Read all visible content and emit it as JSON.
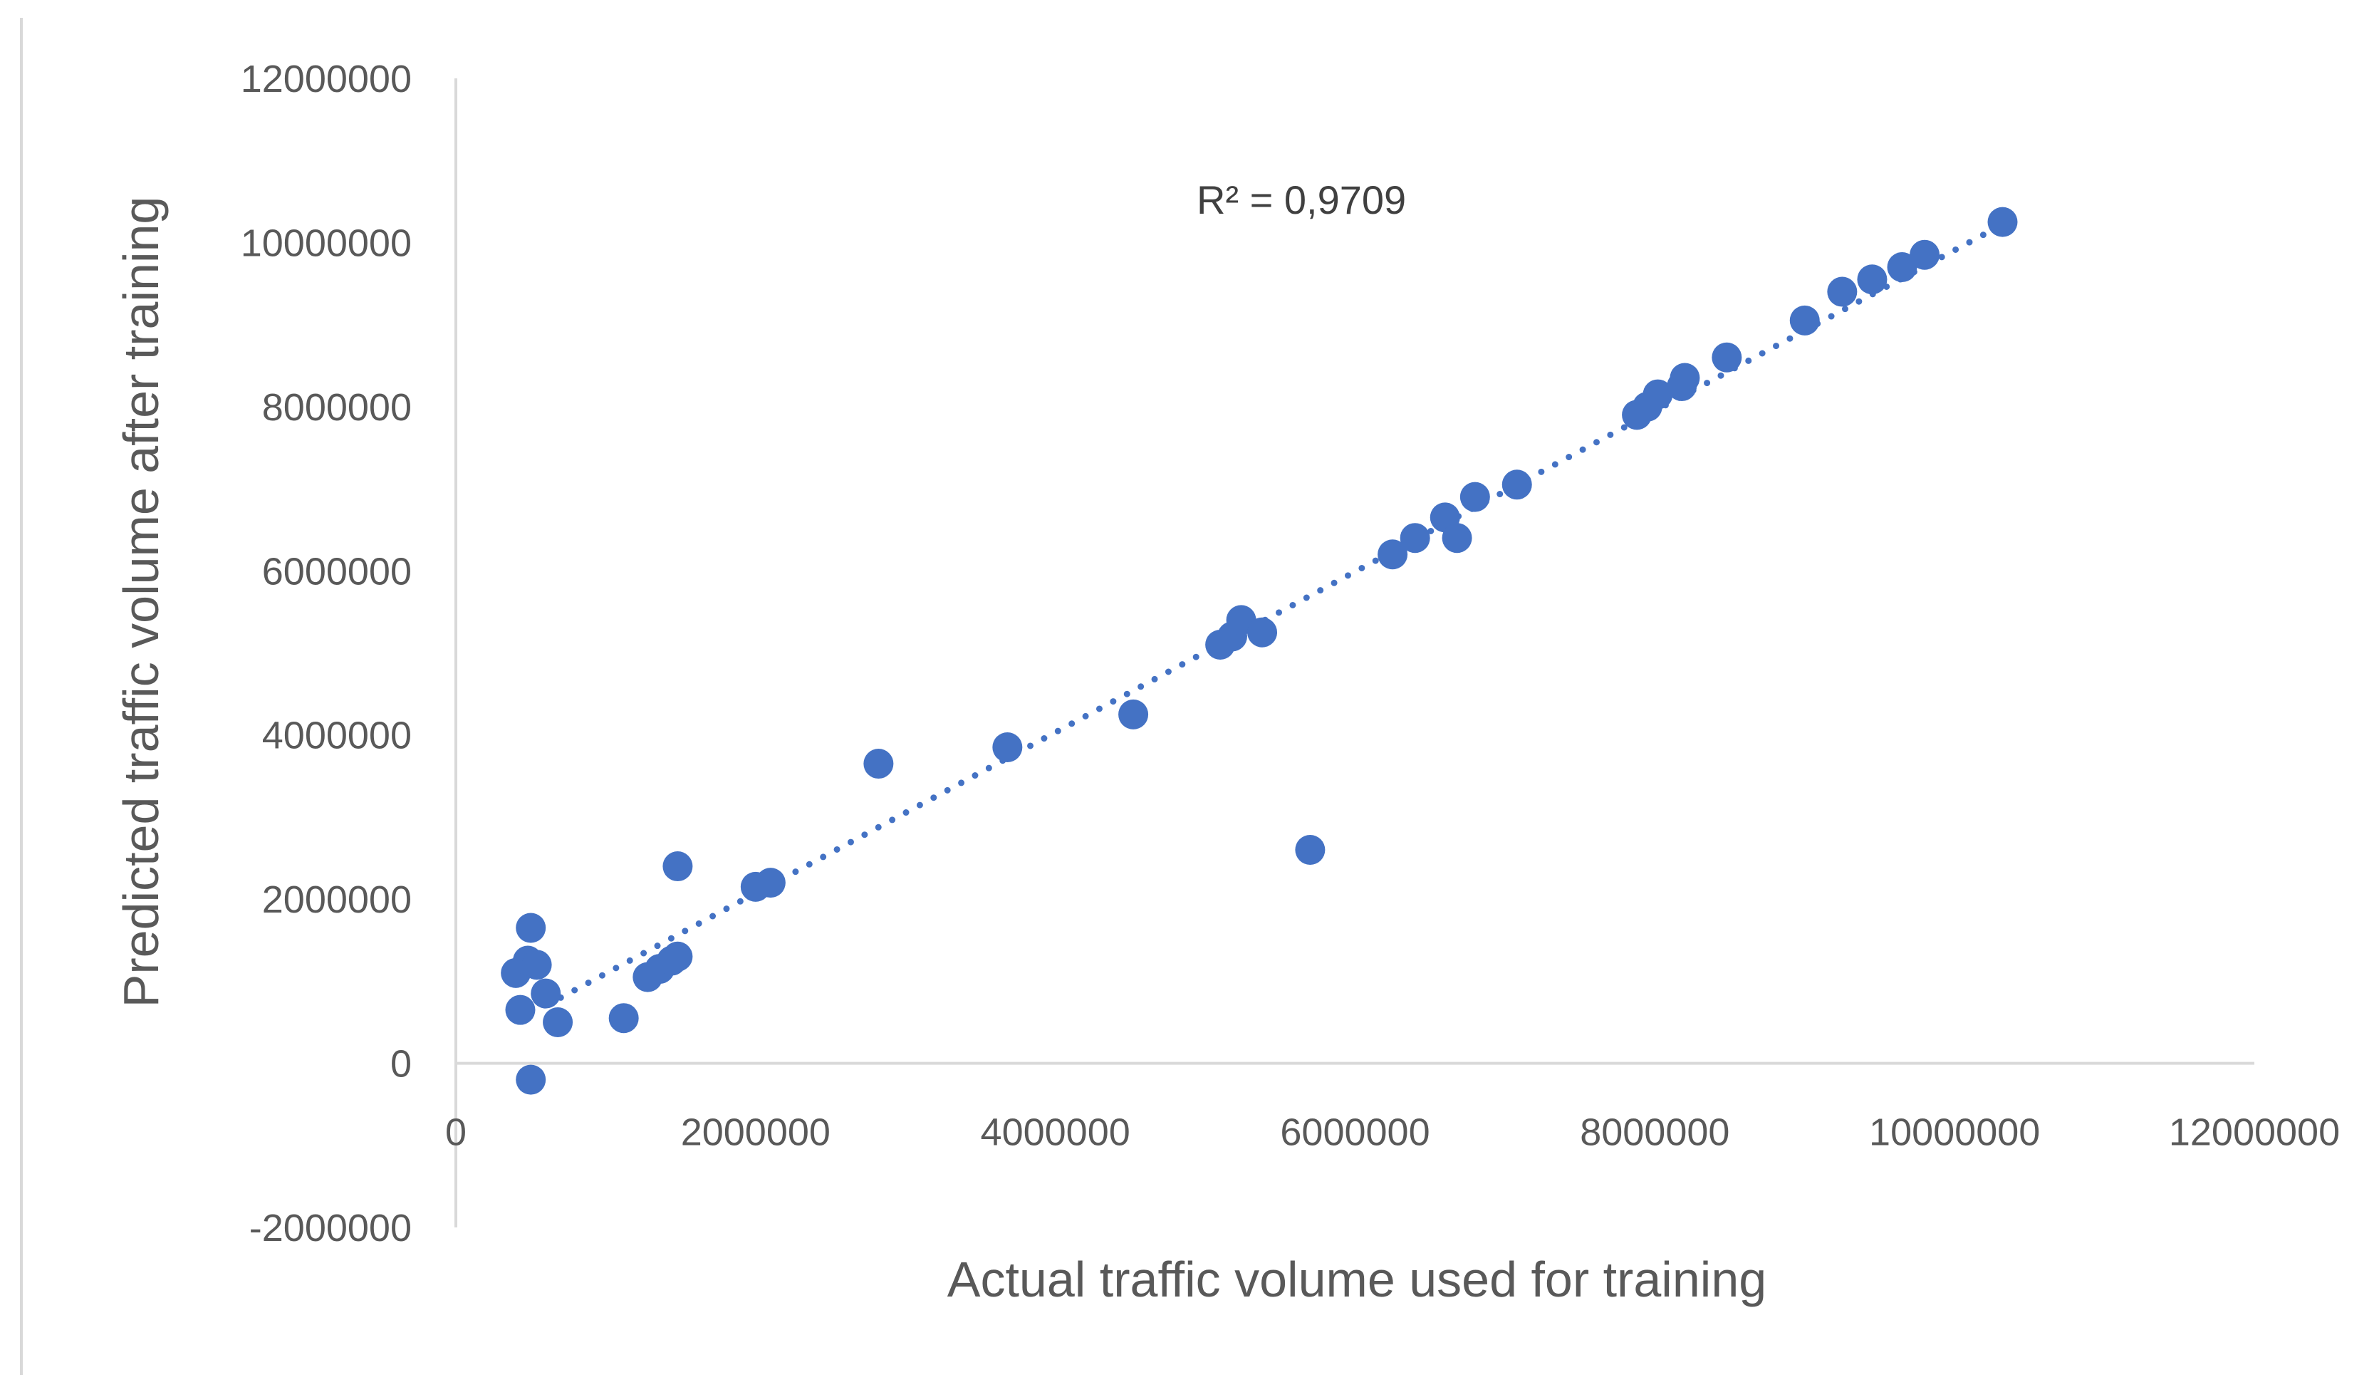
{
  "chart_data": {
    "type": "scatter",
    "xlabel": "Actual traffic volume used for training",
    "ylabel": "Predicted traffic volume after training",
    "xlim": [
      0,
      12000000
    ],
    "ylim": [
      -2000000,
      12000000
    ],
    "x_ticks": [
      0,
      2000000,
      4000000,
      6000000,
      8000000,
      10000000,
      12000000
    ],
    "y_ticks": [
      -2000000,
      0,
      2000000,
      4000000,
      6000000,
      8000000,
      10000000,
      12000000
    ],
    "x_tick_labels": [
      "0",
      "2000000",
      "4000000",
      "6000000",
      "8000000",
      "10000000",
      "12000000"
    ],
    "y_tick_labels": [
      "-2000000",
      "0",
      "2000000",
      "4000000",
      "6000000",
      "8000000",
      "10000000",
      "12000000"
    ],
    "grid": false,
    "legend": "none",
    "point_color": "#4472C4",
    "trendline": {
      "style": "dotted",
      "color": "#4472C4",
      "x_range": [
        700000,
        10300000
      ],
      "y_at_start": 800000,
      "y_at_end": 10200000
    },
    "annotation": "R² = 0,9709",
    "points": [
      {
        "x": 400000,
        "y": 1100000
      },
      {
        "x": 430000,
        "y": 650000
      },
      {
        "x": 480000,
        "y": 1250000
      },
      {
        "x": 500000,
        "y": 1650000
      },
      {
        "x": 500000,
        "y": -200000
      },
      {
        "x": 540000,
        "y": 1200000
      },
      {
        "x": 600000,
        "y": 850000
      },
      {
        "x": 680000,
        "y": 500000
      },
      {
        "x": 1120000,
        "y": 550000
      },
      {
        "x": 1280000,
        "y": 1050000
      },
      {
        "x": 1360000,
        "y": 1150000
      },
      {
        "x": 1440000,
        "y": 1250000
      },
      {
        "x": 1480000,
        "y": 1300000
      },
      {
        "x": 1480000,
        "y": 2400000
      },
      {
        "x": 2000000,
        "y": 2150000
      },
      {
        "x": 2100000,
        "y": 2200000
      },
      {
        "x": 2820000,
        "y": 3650000
      },
      {
        "x": 3680000,
        "y": 3850000
      },
      {
        "x": 4520000,
        "y": 4250000
      },
      {
        "x": 5100000,
        "y": 5100000
      },
      {
        "x": 5180000,
        "y": 5200000
      },
      {
        "x": 5240000,
        "y": 5400000
      },
      {
        "x": 5380000,
        "y": 5250000
      },
      {
        "x": 5700000,
        "y": 2600000
      },
      {
        "x": 6250000,
        "y": 6200000
      },
      {
        "x": 6400000,
        "y": 6400000
      },
      {
        "x": 6600000,
        "y": 6650000
      },
      {
        "x": 6680000,
        "y": 6400000
      },
      {
        "x": 6800000,
        "y": 6900000
      },
      {
        "x": 7080000,
        "y": 7050000
      },
      {
        "x": 7880000,
        "y": 7900000
      },
      {
        "x": 7950000,
        "y": 8000000
      },
      {
        "x": 8020000,
        "y": 8150000
      },
      {
        "x": 8180000,
        "y": 8250000
      },
      {
        "x": 8200000,
        "y": 8350000
      },
      {
        "x": 8480000,
        "y": 8600000
      },
      {
        "x": 9000000,
        "y": 9050000
      },
      {
        "x": 9250000,
        "y": 9400000
      },
      {
        "x": 9450000,
        "y": 9550000
      },
      {
        "x": 9650000,
        "y": 9700000
      },
      {
        "x": 9800000,
        "y": 9850000
      },
      {
        "x": 10320000,
        "y": 10250000
      }
    ]
  }
}
